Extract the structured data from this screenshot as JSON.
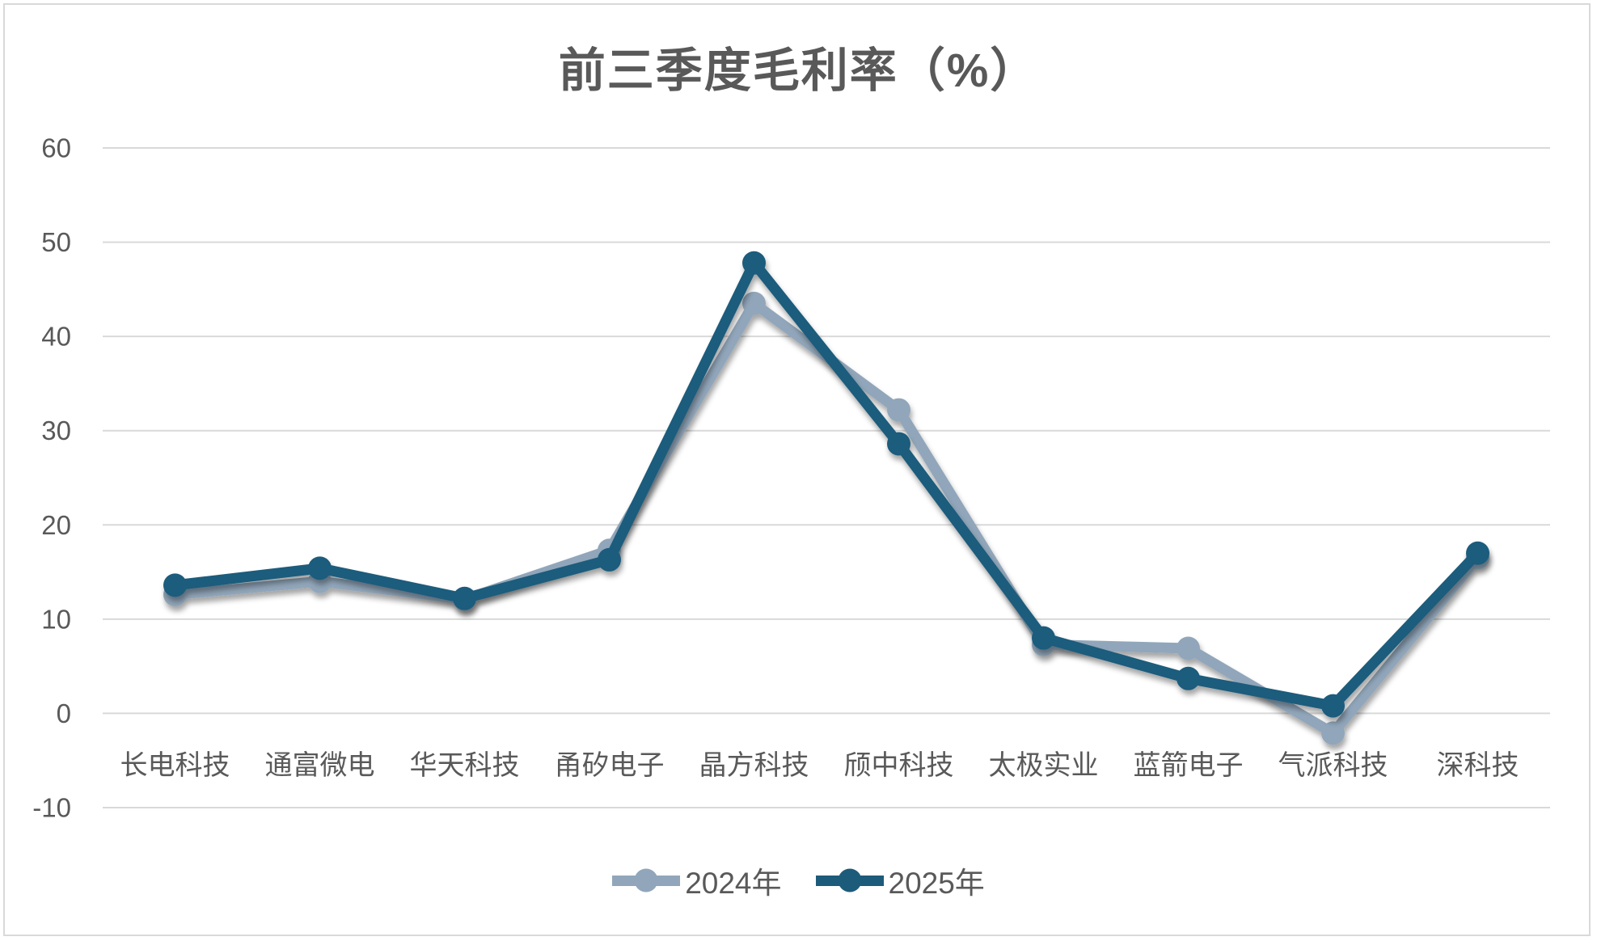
{
  "chart": {
    "title": "前三季度毛利率（%）",
    "legend": [
      {
        "label": "2024年"
      },
      {
        "label": "2025年"
      }
    ]
  },
  "chart_data": {
    "type": "line",
    "title": "前三季度毛利率（%）",
    "categories": [
      "长电科技",
      "通富微电",
      "华天科技",
      "甬矽电子",
      "晶方科技",
      "颀中科技",
      "太极实业",
      "蓝箭电子",
      "气派科技",
      "深科技"
    ],
    "series": [
      {
        "name": "2024年",
        "color": "#91a6ba",
        "values": [
          12.6,
          14.0,
          12.1,
          17.3,
          43.5,
          32.2,
          7.3,
          6.9,
          -2.1,
          16.5
        ]
      },
      {
        "name": "2025年",
        "color": "#1d5b7b",
        "values": [
          13.6,
          15.4,
          12.2,
          16.3,
          47.8,
          28.6,
          8.0,
          3.7,
          0.8,
          17.0
        ]
      }
    ],
    "xlabel": "",
    "ylabel": "",
    "ylim": [
      -10,
      60
    ],
    "yticks": [
      60,
      50,
      40,
      30,
      20,
      10,
      0,
      -10
    ],
    "grid": true,
    "legend_position": "bottom",
    "gridline_color": "#d9d9d9",
    "text_color": "#595959"
  }
}
